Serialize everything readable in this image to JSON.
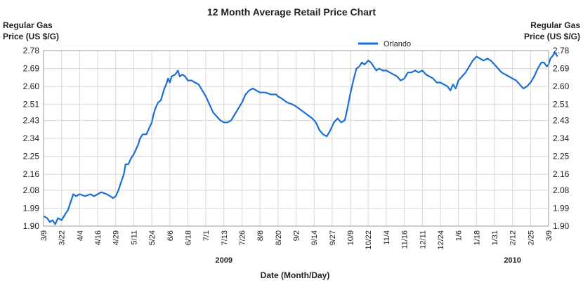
{
  "chart_data": {
    "type": "line",
    "title": "12 Month Average Retail Price Chart",
    "ylabel_left": [
      "Regular Gas",
      "Price (US $/G)"
    ],
    "ylabel_right": [
      "Regular Gas",
      "Price (US $/G)"
    ],
    "xlabel": "Date (Month/Day)",
    "ylim": [
      1.9,
      2.78
    ],
    "yticks": [
      "1.90",
      "1.99",
      "2.08",
      "2.16",
      "2.25",
      "2.34",
      "2.43",
      "2.51",
      "2.60",
      "2.69",
      "2.78"
    ],
    "xticks": [
      "3/9",
      "3/22",
      "4/4",
      "4/16",
      "4/29",
      "5/11",
      "5/24",
      "6/6",
      "6/18",
      "7/1",
      "7/13",
      "7/26",
      "8/8",
      "8/20",
      "9/2",
      "9/14",
      "9/27",
      "10/9",
      "10/22",
      "11/4",
      "11/16",
      "12/11",
      "12/24",
      "1/6",
      "1/18",
      "1/31",
      "2/12",
      "2/25",
      "3/9"
    ],
    "year_labels": [
      {
        "label": "2009",
        "at_tick": 10
      },
      {
        "label": "2010",
        "at_tick": 26
      }
    ],
    "grid": true,
    "legend": {
      "placement": "top-center",
      "color": "#1a6fd6"
    },
    "series": [
      {
        "name": "Orlando",
        "color": "#1a6fd6",
        "points": [
          [
            0,
            1.95
          ],
          [
            0.2,
            1.94
          ],
          [
            0.35,
            1.92
          ],
          [
            0.5,
            1.93
          ],
          [
            0.65,
            1.91
          ],
          [
            0.8,
            1.94
          ],
          [
            1.0,
            1.93
          ],
          [
            1.2,
            1.96
          ],
          [
            1.35,
            1.98
          ],
          [
            1.5,
            2.02
          ],
          [
            1.65,
            2.06
          ],
          [
            1.8,
            2.05
          ],
          [
            2.0,
            2.06
          ],
          [
            2.3,
            2.05
          ],
          [
            2.6,
            2.06
          ],
          [
            2.8,
            2.05
          ],
          [
            3.0,
            2.06
          ],
          [
            3.2,
            2.07
          ],
          [
            3.5,
            2.06
          ],
          [
            3.7,
            2.05
          ],
          [
            3.85,
            2.04
          ],
          [
            4.0,
            2.05
          ],
          [
            4.15,
            2.08
          ],
          [
            4.3,
            2.12
          ],
          [
            4.45,
            2.16
          ],
          [
            4.55,
            2.21
          ],
          [
            4.7,
            2.21
          ],
          [
            4.85,
            2.24
          ],
          [
            5.0,
            2.26
          ],
          [
            5.1,
            2.28
          ],
          [
            5.25,
            2.31
          ],
          [
            5.35,
            2.34
          ],
          [
            5.5,
            2.36
          ],
          [
            5.7,
            2.36
          ],
          [
            5.85,
            2.39
          ],
          [
            6.0,
            2.42
          ],
          [
            6.1,
            2.46
          ],
          [
            6.2,
            2.49
          ],
          [
            6.35,
            2.52
          ],
          [
            6.5,
            2.53
          ],
          [
            6.6,
            2.56
          ],
          [
            6.7,
            2.59
          ],
          [
            6.8,
            2.61
          ],
          [
            6.9,
            2.64
          ],
          [
            7.0,
            2.62
          ],
          [
            7.1,
            2.65
          ],
          [
            7.3,
            2.66
          ],
          [
            7.45,
            2.68
          ],
          [
            7.55,
            2.65
          ],
          [
            7.7,
            2.66
          ],
          [
            7.85,
            2.65
          ],
          [
            8.0,
            2.63
          ],
          [
            8.2,
            2.63
          ],
          [
            8.4,
            2.62
          ],
          [
            8.6,
            2.61
          ],
          [
            8.8,
            2.58
          ],
          [
            9.0,
            2.55
          ],
          [
            9.2,
            2.51
          ],
          [
            9.4,
            2.47
          ],
          [
            9.6,
            2.45
          ],
          [
            9.8,
            2.43
          ],
          [
            10.0,
            2.42
          ],
          [
            10.2,
            2.42
          ],
          [
            10.4,
            2.43
          ],
          [
            10.6,
            2.46
          ],
          [
            10.8,
            2.49
          ],
          [
            11.0,
            2.52
          ],
          [
            11.2,
            2.56
          ],
          [
            11.4,
            2.58
          ],
          [
            11.6,
            2.59
          ],
          [
            11.8,
            2.58
          ],
          [
            12.0,
            2.57
          ],
          [
            12.3,
            2.57
          ],
          [
            12.6,
            2.56
          ],
          [
            12.9,
            2.56
          ],
          [
            13.0,
            2.55
          ],
          [
            13.2,
            2.54
          ],
          [
            13.5,
            2.52
          ],
          [
            13.8,
            2.51
          ],
          [
            14.0,
            2.5
          ],
          [
            14.3,
            2.48
          ],
          [
            14.6,
            2.46
          ],
          [
            14.9,
            2.44
          ],
          [
            15.1,
            2.42
          ],
          [
            15.3,
            2.38
          ],
          [
            15.5,
            2.36
          ],
          [
            15.7,
            2.35
          ],
          [
            15.9,
            2.38
          ],
          [
            16.1,
            2.42
          ],
          [
            16.3,
            2.44
          ],
          [
            16.5,
            2.42
          ],
          [
            16.7,
            2.43
          ],
          [
            16.85,
            2.49
          ],
          [
            17.0,
            2.56
          ],
          [
            17.2,
            2.64
          ],
          [
            17.35,
            2.69
          ],
          [
            17.5,
            2.7
          ],
          [
            17.65,
            2.72
          ],
          [
            17.8,
            2.71
          ],
          [
            18.0,
            2.73
          ],
          [
            18.15,
            2.72
          ],
          [
            18.3,
            2.7
          ],
          [
            18.45,
            2.68
          ],
          [
            18.6,
            2.69
          ],
          [
            18.8,
            2.68
          ],
          [
            19.0,
            2.68
          ],
          [
            19.2,
            2.67
          ],
          [
            19.4,
            2.66
          ],
          [
            19.6,
            2.65
          ],
          [
            19.8,
            2.63
          ],
          [
            20.0,
            2.64
          ],
          [
            20.2,
            2.67
          ],
          [
            20.4,
            2.67
          ],
          [
            20.6,
            2.68
          ],
          [
            20.8,
            2.67
          ],
          [
            21.0,
            2.68
          ],
          [
            21.2,
            2.66
          ],
          [
            21.4,
            2.65
          ],
          [
            21.6,
            2.64
          ],
          [
            21.8,
            2.62
          ],
          [
            22.0,
            2.62
          ],
          [
            22.2,
            2.61
          ],
          [
            22.4,
            2.6
          ],
          [
            22.55,
            2.58
          ],
          [
            22.7,
            2.61
          ],
          [
            22.85,
            2.59
          ],
          [
            23.0,
            2.63
          ],
          [
            23.2,
            2.65
          ],
          [
            23.4,
            2.67
          ],
          [
            23.6,
            2.7
          ],
          [
            23.8,
            2.73
          ],
          [
            24.0,
            2.75
          ],
          [
            24.2,
            2.74
          ],
          [
            24.4,
            2.73
          ],
          [
            24.6,
            2.74
          ],
          [
            24.8,
            2.73
          ],
          [
            25.0,
            2.71
          ],
          [
            25.2,
            2.69
          ],
          [
            25.4,
            2.67
          ],
          [
            25.6,
            2.66
          ],
          [
            25.8,
            2.65
          ],
          [
            26.0,
            2.64
          ],
          [
            26.2,
            2.63
          ],
          [
            26.4,
            2.61
          ],
          [
            26.6,
            2.59
          ],
          [
            26.8,
            2.6
          ],
          [
            27.0,
            2.62
          ],
          [
            27.2,
            2.65
          ],
          [
            27.4,
            2.69
          ],
          [
            27.6,
            2.72
          ],
          [
            27.75,
            2.72
          ],
          [
            27.9,
            2.7
          ],
          [
            28.0,
            2.71
          ],
          [
            28.1,
            2.74
          ],
          [
            28.2,
            2.75
          ],
          [
            28.35,
            2.77
          ],
          [
            28.5,
            2.75
          ]
        ]
      }
    ]
  }
}
